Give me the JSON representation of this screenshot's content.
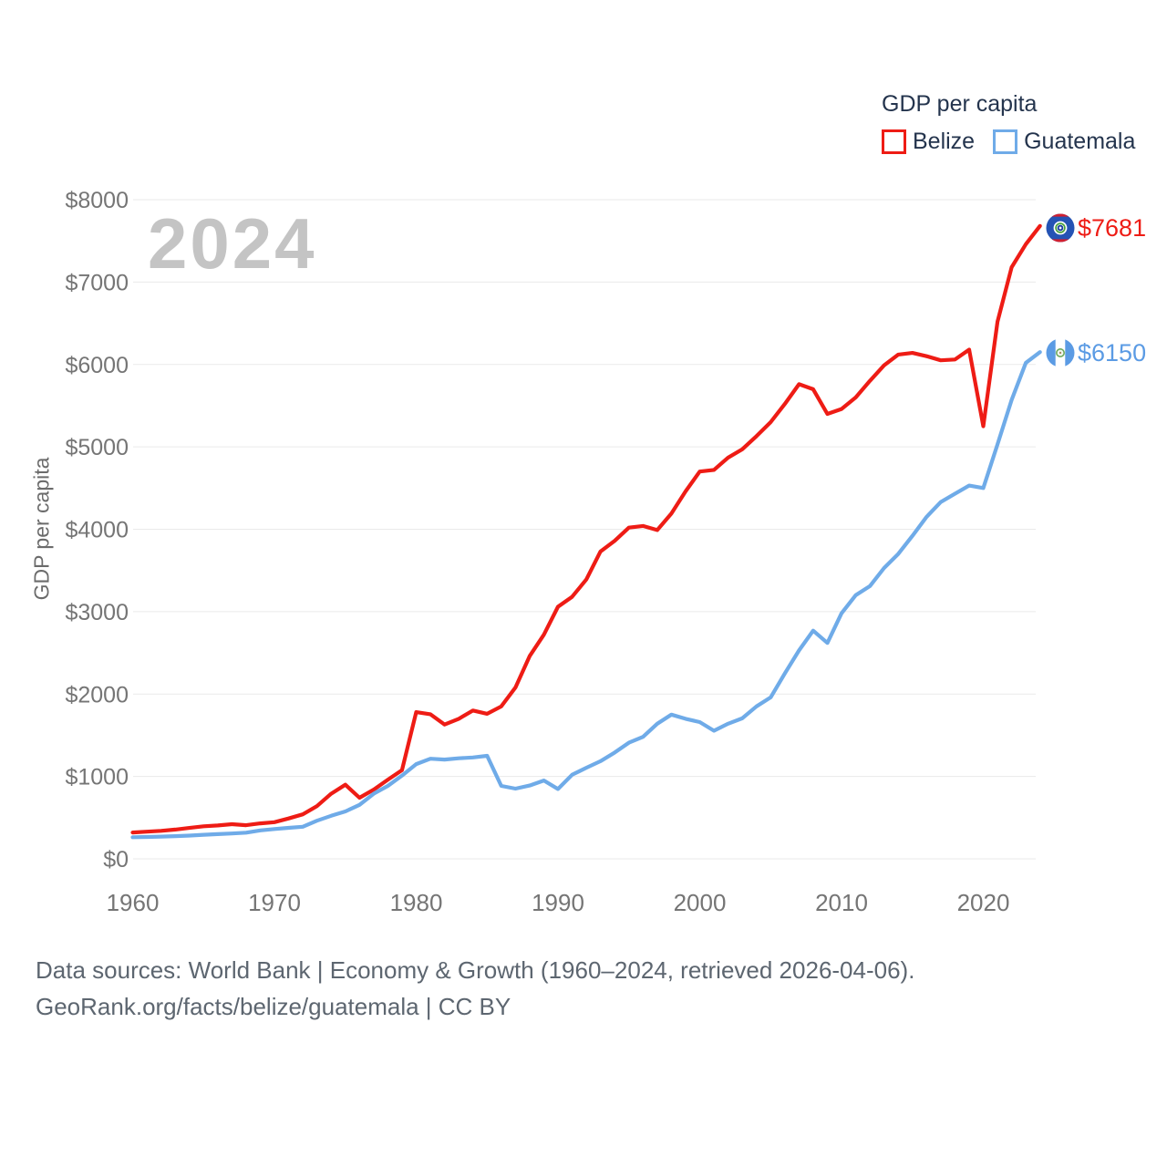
{
  "legend": {
    "title": "GDP per capita",
    "items": [
      {
        "label": "Belize",
        "color": "#ee1c15"
      },
      {
        "label": "Guatemala",
        "color": "#6fabe8"
      }
    ]
  },
  "watermark": "2024",
  "footer": {
    "line1": "Data sources: World Bank | Economy & Growth (1960–2024, retrieved 2026-04-06).",
    "line2": "GeoRank.org/facts/belize/guatemala | CC BY"
  },
  "chart_data": {
    "type": "line",
    "title": "GDP per capita",
    "ylabel": "GDP per capita",
    "xlabel": "",
    "ylim": [
      0,
      8000
    ],
    "grid": "horizontal-only",
    "legend_position": "top-right",
    "x": [
      1960,
      1961,
      1962,
      1963,
      1964,
      1965,
      1966,
      1967,
      1968,
      1969,
      1970,
      1971,
      1972,
      1973,
      1974,
      1975,
      1976,
      1977,
      1978,
      1979,
      1980,
      1981,
      1982,
      1983,
      1984,
      1985,
      1986,
      1987,
      1988,
      1989,
      1990,
      1991,
      1992,
      1993,
      1994,
      1995,
      1996,
      1997,
      1998,
      1999,
      2000,
      2001,
      2002,
      2003,
      2004,
      2005,
      2006,
      2007,
      2008,
      2009,
      2010,
      2011,
      2012,
      2013,
      2014,
      2015,
      2016,
      2017,
      2018,
      2019,
      2020,
      2021,
      2022,
      2023,
      2024
    ],
    "x_ticks": [
      1960,
      1970,
      1980,
      1990,
      2000,
      2010,
      2020
    ],
    "y_ticks": [
      {
        "value": 0,
        "label": "$0"
      },
      {
        "value": 1000,
        "label": "$1000"
      },
      {
        "value": 2000,
        "label": "$2000"
      },
      {
        "value": 3000,
        "label": "$3000"
      },
      {
        "value": 4000,
        "label": "$4000"
      },
      {
        "value": 5000,
        "label": "$5000"
      },
      {
        "value": 6000,
        "label": "$6000"
      },
      {
        "value": 7000,
        "label": "$7000"
      },
      {
        "value": 8000,
        "label": "$8000"
      }
    ],
    "series": [
      {
        "name": "Belize",
        "color": "#ee1c15",
        "end_label": "$7681",
        "end_value": 7681,
        "values": [
          320,
          330,
          340,
          355,
          375,
          395,
          405,
          420,
          408,
          430,
          445,
          490,
          540,
          640,
          790,
          900,
          741,
          840,
          960,
          1075,
          1780,
          1755,
          1630,
          1700,
          1800,
          1760,
          1850,
          2080,
          2460,
          2720,
          3060,
          3180,
          3390,
          3730,
          3860,
          4020,
          4040,
          3990,
          4190,
          4460,
          4700,
          4720,
          4870,
          4970,
          5130,
          5300,
          5520,
          5760,
          5700,
          5400,
          5460,
          5600,
          5800,
          5990,
          6120,
          6140,
          6100,
          6050,
          6060,
          6180,
          5250,
          6520,
          7180,
          7460,
          7681
        ]
      },
      {
        "name": "Guatemala",
        "color": "#6fabe8",
        "end_label": "$6150",
        "end_value": 6150,
        "values": [
          262,
          266,
          270,
          275,
          282,
          292,
          300,
          308,
          318,
          345,
          362,
          376,
          390,
          462,
          522,
          575,
          655,
          790,
          885,
          1010,
          1150,
          1215,
          1205,
          1220,
          1230,
          1250,
          885,
          852,
          890,
          950,
          848,
          1020,
          1105,
          1185,
          1290,
          1410,
          1480,
          1640,
          1750,
          1700,
          1660,
          1555,
          1640,
          1705,
          1850,
          1960,
          2250,
          2530,
          2770,
          2620,
          2980,
          3200,
          3310,
          3530,
          3700,
          3920,
          4150,
          4330,
          4430,
          4530,
          4500,
          5030,
          5570,
          6020,
          6150
        ]
      }
    ]
  }
}
